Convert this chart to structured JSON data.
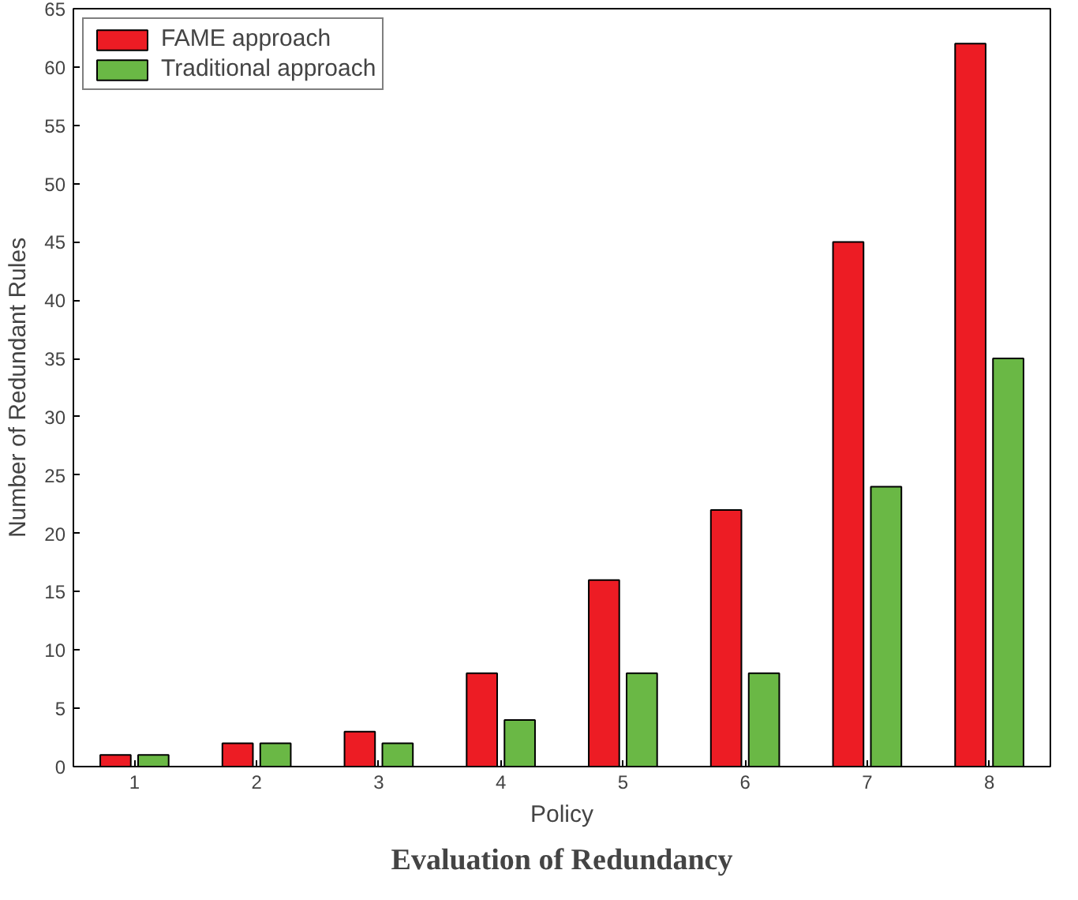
{
  "chart_data": {
    "type": "bar",
    "xlabel": "Policy",
    "ylabel": "Number of Redundant Rules",
    "categories": [
      "1",
      "2",
      "3",
      "4",
      "5",
      "6",
      "7",
      "8"
    ],
    "series": [
      {
        "name": "FAME approach",
        "color": "#ed1c24",
        "values": [
          1,
          2,
          3,
          8,
          16,
          22,
          45,
          62
        ]
      },
      {
        "name": "Traditional approach",
        "color": "#6ab845",
        "values": [
          1,
          2,
          2,
          4,
          8,
          8,
          24,
          35
        ]
      }
    ],
    "ylim": [
      0,
      65
    ],
    "yticks": [
      0,
      5,
      10,
      15,
      20,
      25,
      30,
      35,
      40,
      45,
      50,
      55,
      60,
      65
    ],
    "grid": false,
    "legend": "top left",
    "annotations": [
      "Evaluation of Redundancy"
    ]
  }
}
